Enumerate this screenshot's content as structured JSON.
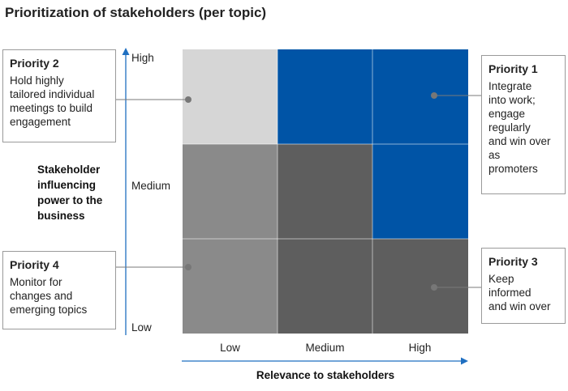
{
  "title": "Prioritization of stakeholders (per topic)",
  "y_axis": {
    "label": "Stakeholder\ninfluencing\npower to the\nbusiness",
    "ticks": [
      "High",
      "Medium",
      "Low"
    ]
  },
  "x_axis": {
    "label": "Relevance to stakeholders",
    "ticks": [
      "Low",
      "Medium",
      "High"
    ]
  },
  "grid": {
    "rows": [
      [
        "light-gray",
        "blue",
        "blue"
      ],
      [
        "mid-gray",
        "dark-gray",
        "blue"
      ],
      [
        "mid-gray",
        "dark-gray",
        "dark-gray"
      ]
    ]
  },
  "colors": {
    "blue": "#0054a6",
    "light-gray": "#d6d6d6",
    "mid-gray": "#8a8a8a",
    "dark-gray": "#5e5e5e",
    "axis": "#1f6fc1",
    "connector": "#7a7a7a",
    "dot": "#777777"
  },
  "priorities": {
    "p2": {
      "title": "Priority 2",
      "text": "Hold highly\ntailored individual\nmeetings to build\nengagement"
    },
    "p1": {
      "title": "Priority 1",
      "text": "Integrate\ninto work;\nengage\nregularly\nand win over\nas\npromoters"
    },
    "p4": {
      "title": "Priority 4",
      "text": "Monitor for\nchanges and\nemerging topics"
    },
    "p3": {
      "title": "Priority 3",
      "text": "Keep\ninformed\nand win over"
    }
  }
}
